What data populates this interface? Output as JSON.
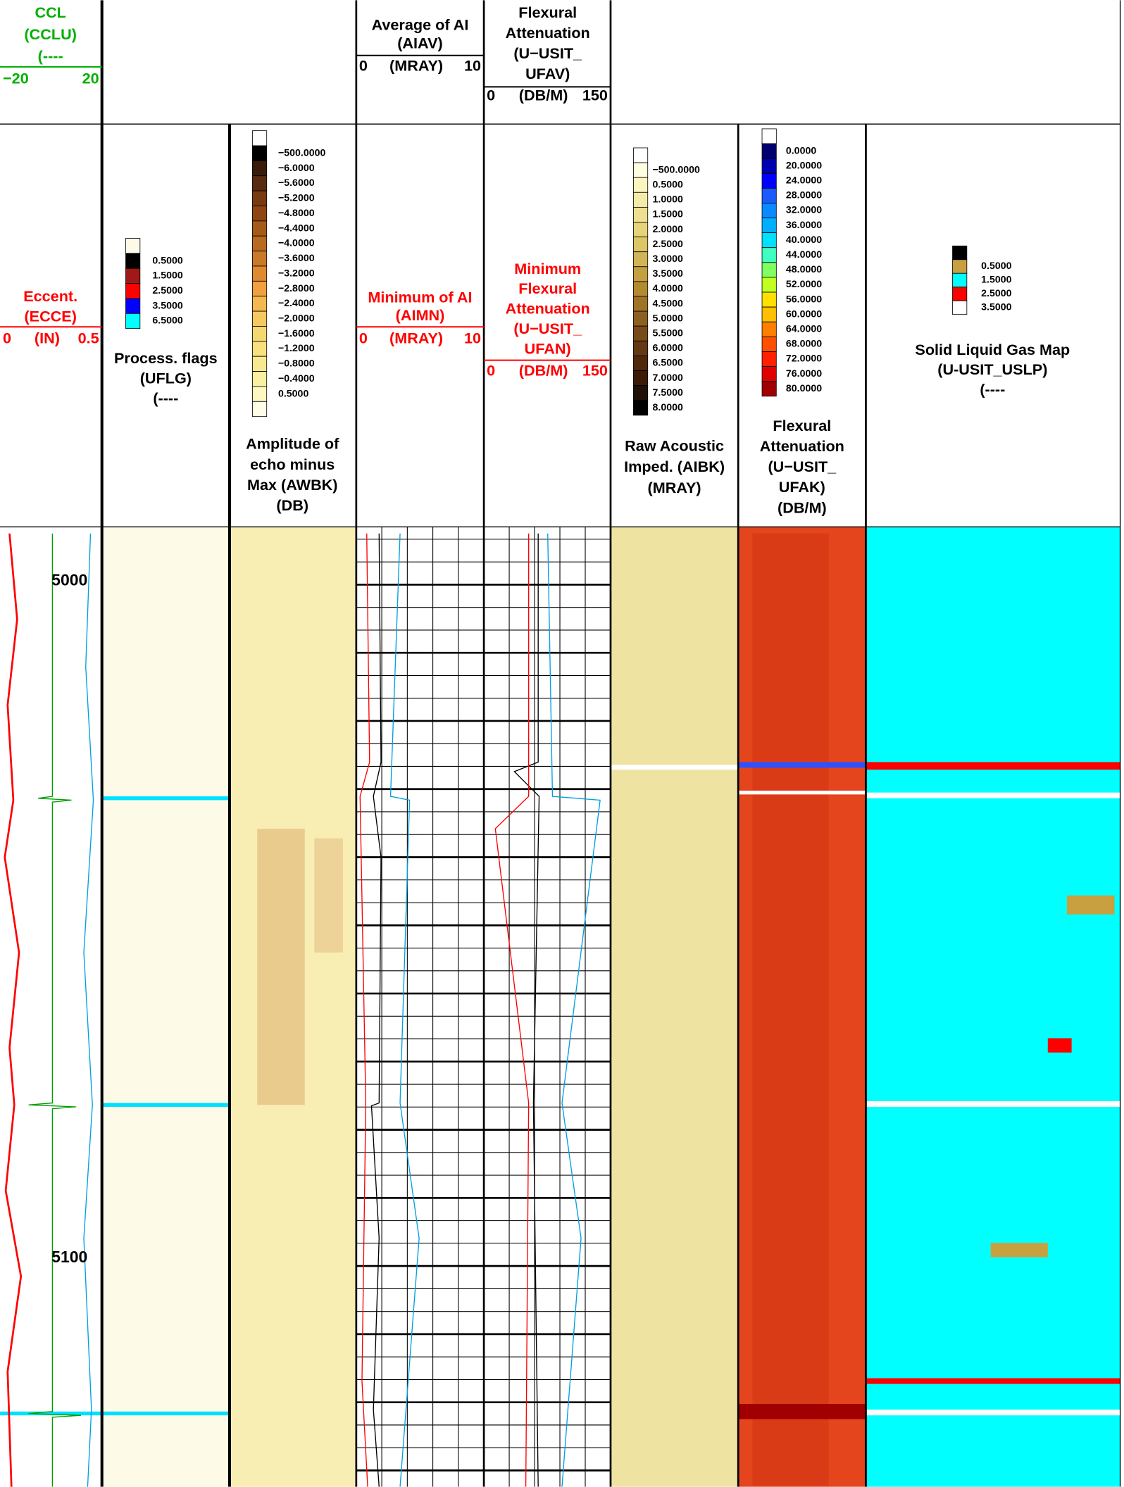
{
  "top_header": {
    "ccl": {
      "lines": [
        "CCL",
        "(CCLU)",
        "(----"
      ],
      "scale": [
        "−20",
        "20"
      ]
    },
    "avg_ai": {
      "lines": [
        "Average of AI",
        "(AIAV)"
      ],
      "scale": [
        "0",
        "(MRAY)",
        "10"
      ]
    },
    "avg_flex": {
      "lines": [
        "Flexural",
        "Attenuation",
        "(U−USIT_",
        "UFAV)"
      ],
      "scale": [
        "0",
        "(DB/M)",
        "150"
      ]
    }
  },
  "main_header": {
    "ecc": {
      "lines": [
        "Eccent.",
        "(ECCE)"
      ],
      "scale": [
        "0",
        "(IN)",
        "0.5"
      ]
    },
    "flags": {
      "lines": [
        "Process. flags",
        "(UFLG)",
        "(----"
      ],
      "legend": {
        "colors": [
          "#fdfbe8",
          "#000000",
          "#a01818",
          "#ff0000",
          "#0000ff",
          "#00ffff"
        ],
        "labels": [
          "0.5000",
          "1.5000",
          "2.5000",
          "3.5000",
          "6.5000"
        ]
      }
    },
    "awbk": {
      "lines": [
        "Amplitude of",
        "echo minus",
        "Max (AWBK)",
        "(DB)"
      ],
      "legend": {
        "colors": [
          "#ffffff",
          "#000000",
          "#3a1a08",
          "#5a2a10",
          "#7a3a10",
          "#8f4512",
          "#a55a1a",
          "#b86a20",
          "#c87a28",
          "#e08a30",
          "#f0a040",
          "#f5b850",
          "#f5c860",
          "#f5d870",
          "#f8e080",
          "#f8e890",
          "#fbf0a0",
          "#fdf8c0",
          "#fffde8"
        ],
        "labels": [
          "−500.0000",
          "−6.0000",
          "−5.6000",
          "−5.2000",
          "−4.8000",
          "−4.4000",
          "−4.0000",
          "−3.6000",
          "−3.2000",
          "−2.8000",
          "−2.4000",
          "−2.0000",
          "−1.6000",
          "−1.2000",
          "−0.8000",
          "−0.4000",
          "0.5000"
        ]
      }
    },
    "aimn": {
      "lines": [
        "Minimum of AI",
        "(AIMN)"
      ],
      "scale": [
        "0",
        "(MRAY)",
        "10"
      ]
    },
    "ufan": {
      "lines": [
        "Minimum",
        "Flexural",
        "Attenuation",
        "(U−USIT_",
        "UFAN)"
      ],
      "scale": [
        "0",
        "(DB/M)",
        "150"
      ]
    },
    "aibk": {
      "lines": [
        "Raw Acoustic",
        "Imped. (AIBK)",
        "(MRAY)"
      ],
      "legend": {
        "colors": [
          "#ffffff",
          "#fffde0",
          "#fbf5c0",
          "#f5eba8",
          "#eee090",
          "#e6d47a",
          "#dcc666",
          "#d0b455",
          "#c4a040",
          "#b48a30",
          "#a07428",
          "#8c6020",
          "#784c18",
          "#643a12",
          "#50280c",
          "#3c1a08",
          "#201008",
          "#000000"
        ],
        "labels": [
          "−500.0000",
          "0.5000",
          "1.0000",
          "1.5000",
          "2.0000",
          "2.5000",
          "3.0000",
          "3.5000",
          "4.0000",
          "4.5000",
          "5.0000",
          "5.5000",
          "6.0000",
          "6.5000",
          "7.0000",
          "7.5000",
          "8.0000"
        ]
      }
    },
    "ufak": {
      "lines": [
        "Flexural",
        "Attenuation",
        "(U−USIT_",
        "UFAK)",
        "(DB/M)"
      ],
      "legend": {
        "colors": [
          "#ffffff",
          "#000070",
          "#0000b0",
          "#0000ff",
          "#1a5aff",
          "#0a8aff",
          "#00b0ff",
          "#00e0ff",
          "#40ffc0",
          "#80ff60",
          "#c0ff20",
          "#ffe000",
          "#ffc000",
          "#ff8000",
          "#ff5000",
          "#ff2000",
          "#e00000",
          "#a00000"
        ],
        "labels": [
          "0.0000",
          "20.0000",
          "24.0000",
          "28.0000",
          "32.0000",
          "36.0000",
          "40.0000",
          "44.0000",
          "48.0000",
          "52.0000",
          "56.0000",
          "60.0000",
          "64.0000",
          "68.0000",
          "72.0000",
          "76.0000",
          "80.0000"
        ]
      }
    },
    "uslp": {
      "lines": [
        "Solid Liquid Gas Map",
        "(U-USIT_USLP)",
        "(----"
      ],
      "legend": {
        "colors": [
          "#000000",
          "#c8a040",
          "#00ffff",
          "#ff0000",
          "#ffffff"
        ],
        "labels": [
          "0.5000",
          "1.5000",
          "2.5000",
          "3.5000"
        ]
      }
    }
  },
  "depth_labels": [
    "5000",
    "5100"
  ]
}
